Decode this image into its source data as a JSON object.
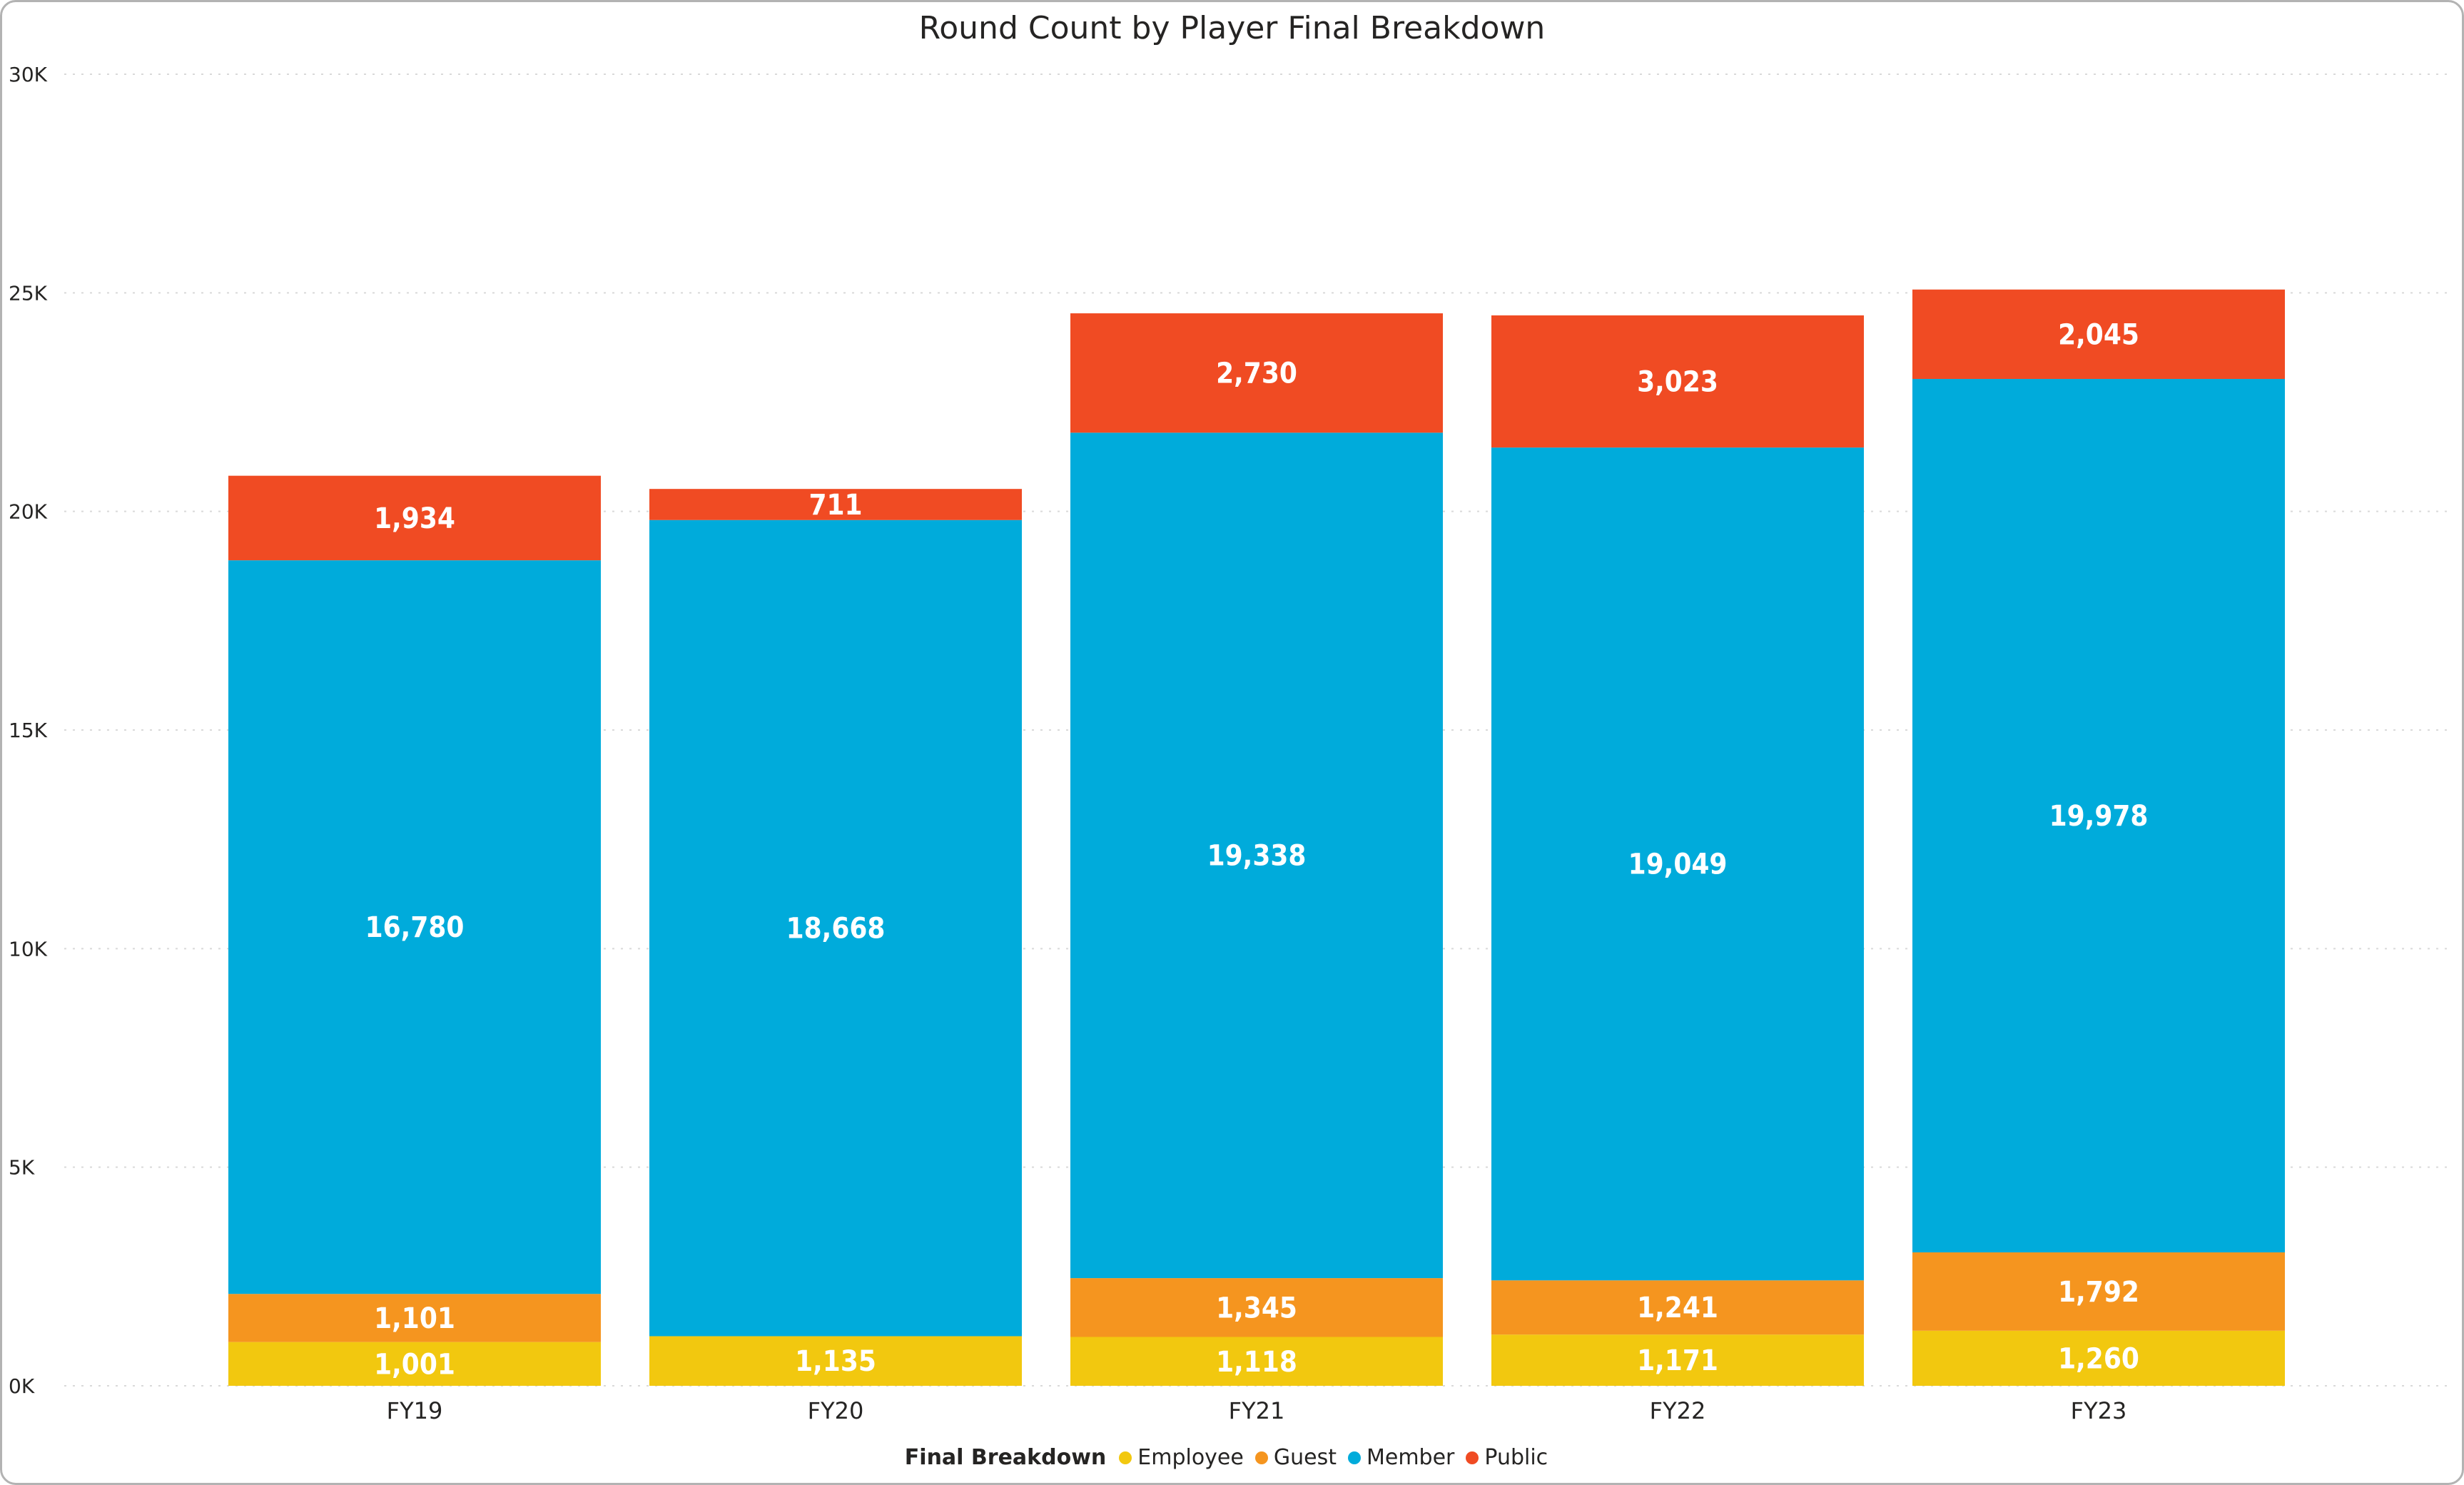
{
  "chart_data": {
    "type": "bar",
    "stacked": true,
    "title": "Round Count by Player Final Breakdown",
    "categories": [
      "FY19",
      "FY20",
      "FY21",
      "FY22",
      "FY23"
    ],
    "series": [
      {
        "name": "Employee",
        "color": "#F2C80F",
        "values": [
          1001,
          1135,
          1118,
          1171,
          1260
        ],
        "labels": [
          "1,001",
          "1,135",
          "1,118",
          "1,171",
          "1,260"
        ]
      },
      {
        "name": "Guest",
        "color": "#F5951F",
        "values": [
          1101,
          null,
          1345,
          1241,
          1792
        ],
        "labels": [
          "1,101",
          "",
          "1,345",
          "1,241",
          "1,792"
        ]
      },
      {
        "name": "Member",
        "color": "#00ABDB",
        "values": [
          16780,
          18668,
          19338,
          19049,
          19978
        ],
        "labels": [
          "16,780",
          "18,668",
          "19,338",
          "19,049",
          "19,978"
        ]
      },
      {
        "name": "Public",
        "color": "#F04B23",
        "values": [
          1934,
          711,
          2730,
          3023,
          2045
        ],
        "labels": [
          "1,934",
          "711",
          "2,730",
          "3,023",
          "2,045"
        ]
      }
    ],
    "ylim": [
      0,
      30000
    ],
    "yticks": [
      0,
      5000,
      10000,
      15000,
      20000,
      25000,
      30000
    ],
    "ytick_labels": [
      "0K",
      "5K",
      "10K",
      "15K",
      "20K",
      "25K",
      "30K"
    ],
    "grid": true,
    "legend_title": "Final Breakdown",
    "legend_position": "bottom-center"
  }
}
